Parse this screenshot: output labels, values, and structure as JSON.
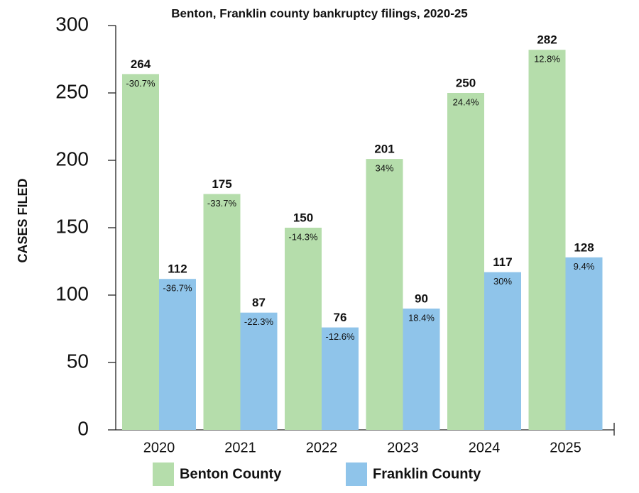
{
  "chart_data": {
    "type": "bar",
    "title": "Benton, Franklin county bankruptcy filings, 2020-25",
    "y_label": "CASES FILED",
    "categories": [
      "2020",
      "2021",
      "2022",
      "2023",
      "2024",
      "2025"
    ],
    "series": [
      {
        "name": "Benton County",
        "color": "#b5ddab",
        "values": [
          264,
          175,
          150,
          201,
          250,
          282
        ],
        "change_labels": [
          "-30.7%",
          "-33.7%",
          "-14.3%",
          "34%",
          "24.4%",
          "12.8%"
        ]
      },
      {
        "name": "Franklin County",
        "color": "#8fc4ea",
        "values": [
          112,
          87,
          76,
          90,
          117,
          128
        ],
        "change_labels": [
          "-36.7%",
          "-22.3%",
          "-12.6%",
          "18.4%",
          "30%",
          "9.4%"
        ]
      }
    ],
    "ylim": [
      0,
      300
    ],
    "yticks": [
      0,
      50,
      100,
      150,
      200,
      250,
      300
    ],
    "grid": false
  }
}
